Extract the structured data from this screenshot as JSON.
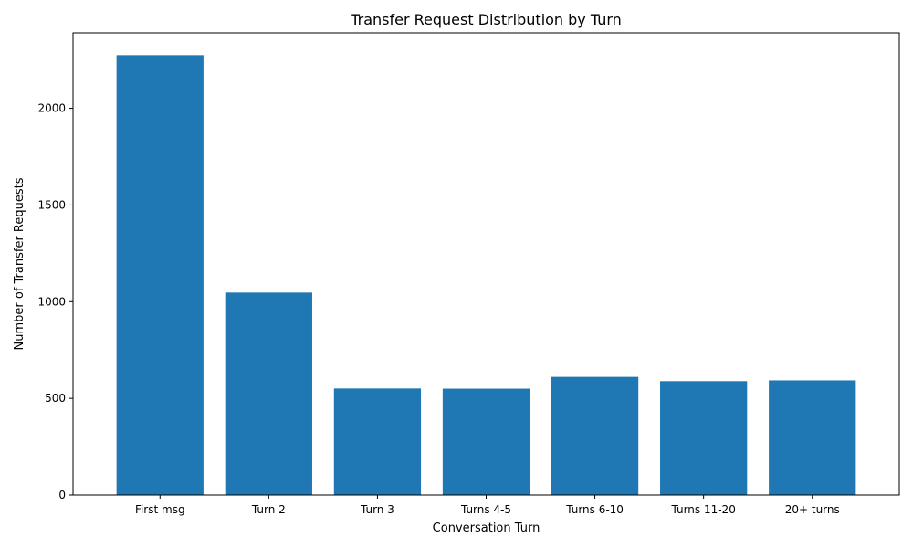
{
  "chart_data": {
    "type": "bar",
    "title": "Transfer Request Distribution by Turn",
    "xlabel": "Conversation Turn",
    "ylabel": "Number of Transfer Requests",
    "categories": [
      "First msg",
      "Turn 2",
      "Turn 3",
      "Turns 4-5",
      "Turns 6-10",
      "Turns 11-20",
      "20+ turns"
    ],
    "values": [
      2275,
      1047,
      551,
      550,
      611,
      589,
      593
    ],
    "ylim": [
      0,
      2390
    ],
    "yticks": [
      0,
      500,
      1000,
      1500,
      2000
    ],
    "bar_color": "#1f77b4",
    "grid": false,
    "legend": "none"
  }
}
